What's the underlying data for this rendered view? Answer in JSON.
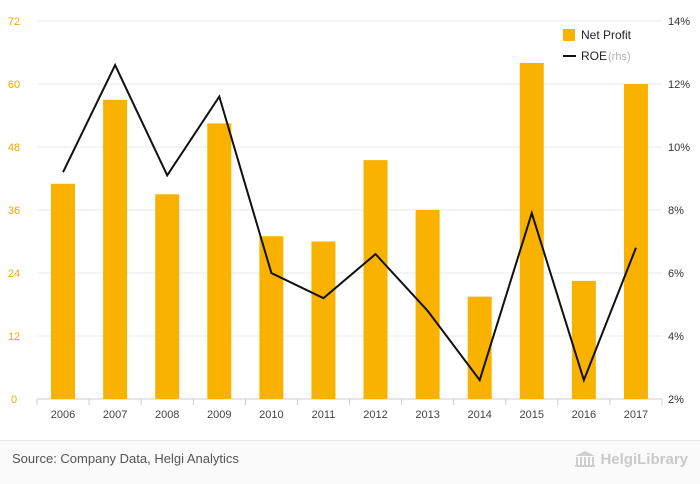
{
  "chart_data": {
    "type": "bar+line",
    "categories": [
      "2006",
      "2007",
      "2008",
      "2009",
      "2010",
      "2011",
      "2012",
      "2013",
      "2014",
      "2015",
      "2016",
      "2017"
    ],
    "series": [
      {
        "name": "Net Profit",
        "kind": "bar",
        "axis": "left",
        "values": [
          41.0,
          57.0,
          39.0,
          52.5,
          31.0,
          30.0,
          45.5,
          36.0,
          19.5,
          64.0,
          22.5,
          60.0
        ]
      },
      {
        "name": "ROE",
        "suffix": "(rhs)",
        "kind": "line",
        "axis": "right",
        "values": [
          9.2,
          12.6,
          9.1,
          11.6,
          6.0,
          5.2,
          6.6,
          4.8,
          2.6,
          7.9,
          2.6,
          6.8
        ]
      }
    ],
    "left_axis": {
      "min": 0,
      "max": 72,
      "ticks": [
        0,
        12,
        24,
        36,
        48,
        60,
        72
      ]
    },
    "right_axis": {
      "min": 2,
      "max": 14,
      "ticks": [
        "2%",
        "4%",
        "6%",
        "8%",
        "10%",
        "12%",
        "14%"
      ]
    },
    "legend": [
      "Net Profit",
      "ROE"
    ],
    "colors": {
      "bar": "#f9b200",
      "line": "#111111",
      "axis_left_text": "#f0a800",
      "axis_right_text": "#333333",
      "grid": "#e9e9e9"
    }
  },
  "footer": {
    "source": "Source: Company Data, Helgi Analytics",
    "logo_text": "HelgiLibrary"
  }
}
